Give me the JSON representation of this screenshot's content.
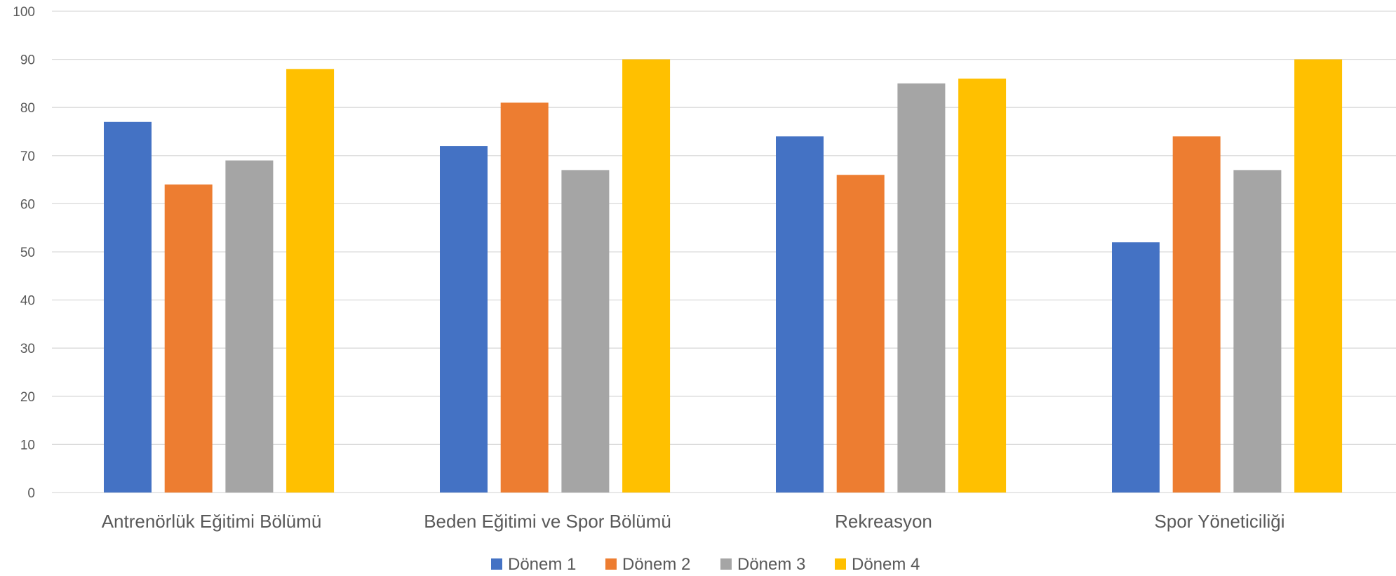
{
  "chart_data": {
    "type": "bar",
    "categories": [
      "Antrenörlük Eğitimi Bölümü",
      "Beden Eğitimi ve Spor Bölümü",
      "Rekreasyon",
      "Spor Yöneticiliği"
    ],
    "series": [
      {
        "name": "Dönem 1",
        "color": "#4472c4",
        "values": [
          77,
          72,
          74,
          52
        ]
      },
      {
        "name": "Dönem 2",
        "color": "#ed7d31",
        "values": [
          64,
          81,
          66,
          74
        ]
      },
      {
        "name": "Dönem 3",
        "color": "#a5a5a5",
        "values": [
          69,
          67,
          85,
          67
        ]
      },
      {
        "name": "Dönem 4",
        "color": "#ffc000",
        "values": [
          88,
          90,
          86,
          90
        ]
      }
    ],
    "ylim": [
      0,
      100
    ],
    "yticks": [
      "0",
      "10",
      "20",
      "30",
      "40",
      "50",
      "60",
      "70",
      "80",
      "90",
      "100"
    ],
    "grid": true,
    "legend": "bottom-center"
  }
}
